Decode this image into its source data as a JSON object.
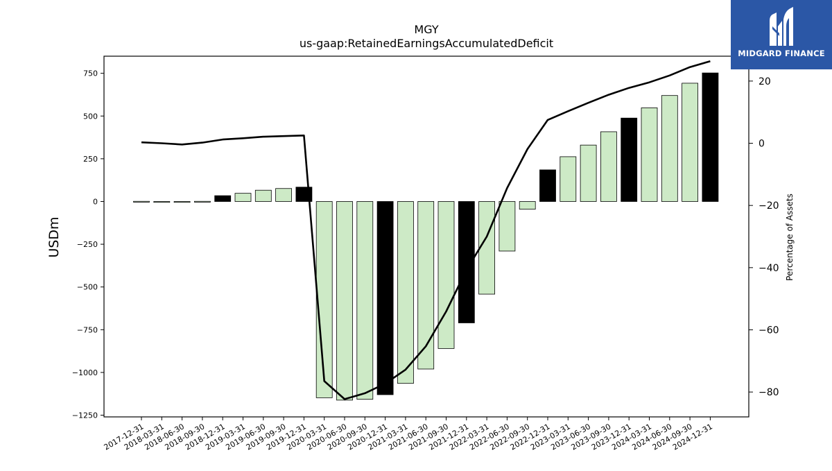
{
  "brand": {
    "name": "MIDGARD FINANCE",
    "logo_icon": "midgard-m-logo-icon",
    "background_color": "#2b57a6"
  },
  "chart_data": {
    "type": "bar",
    "title": "MGY",
    "subtitle": "us-gaap:RetainedEarningsAccumulatedDeficit",
    "ylabel": "USDm",
    "y2label": "Percentage of Assets",
    "ylim": [
      -1260,
      850
    ],
    "y2lim": [
      -88,
      28
    ],
    "yticks": [
      750,
      500,
      250,
      0,
      -250,
      -500,
      -750,
      -1000,
      -1250
    ],
    "y2ticks": [
      20,
      0,
      -20,
      -40,
      -60,
      -80
    ],
    "ytick_labels": [
      "750",
      "500",
      "250",
      "0",
      "−250",
      "−500",
      "−750",
      "−1000",
      "−1250"
    ],
    "y2tick_labels": [
      "20",
      "0",
      "−20",
      "−40",
      "−60",
      "−80"
    ],
    "categories": [
      "2017-12-31",
      "2018-03-31",
      "2018-06-30",
      "2018-09-30",
      "2018-12-31",
      "2019-03-31",
      "2019-06-30",
      "2019-09-30",
      "2019-12-31",
      "2020-03-31",
      "2020-06-30",
      "2020-09-30",
      "2020-12-31",
      "2021-03-31",
      "2021-06-30",
      "2021-09-30",
      "2021-12-31",
      "2022-03-31",
      "2022-06-30",
      "2022-09-30",
      "2022-12-31",
      "2023-03-31",
      "2023-06-30",
      "2023-09-30",
      "2023-12-31",
      "2024-03-31",
      "2024-06-30",
      "2024-09-30",
      "2024-12-31"
    ],
    "series": [
      {
        "type": "bar",
        "axis": "left",
        "values": [
          1,
          -1,
          -2,
          1,
          34,
          48,
          66,
          76,
          84,
          -1148,
          -1162,
          -1157,
          -1130,
          -1064,
          -980,
          -860,
          -710,
          -542,
          -290,
          -45,
          185,
          262,
          330,
          408,
          488,
          548,
          620,
          692,
          752
        ],
        "highlight": [
          false,
          false,
          false,
          false,
          true,
          false,
          false,
          false,
          true,
          false,
          false,
          false,
          true,
          false,
          false,
          false,
          true,
          false,
          false,
          false,
          true,
          false,
          false,
          false,
          true,
          false,
          false,
          false,
          true
        ],
        "color": "#cdeac6",
        "highlight_color": "#000000",
        "edge_color": "#000000"
      },
      {
        "type": "line",
        "axis": "right",
        "values": [
          0.3,
          0.0,
          -0.4,
          0.2,
          1.2,
          1.6,
          2.1,
          2.3,
          2.5,
          -76.5,
          -82.3,
          -80.4,
          -77.3,
          -72.8,
          -65.3,
          -54.1,
          -40.7,
          -30.0,
          -14.4,
          -1.9,
          7.5,
          10.3,
          13.0,
          15.6,
          17.8,
          19.6,
          21.8,
          24.5,
          26.4
        ],
        "color": "#000000"
      }
    ],
    "grid": false,
    "legend": "none"
  }
}
